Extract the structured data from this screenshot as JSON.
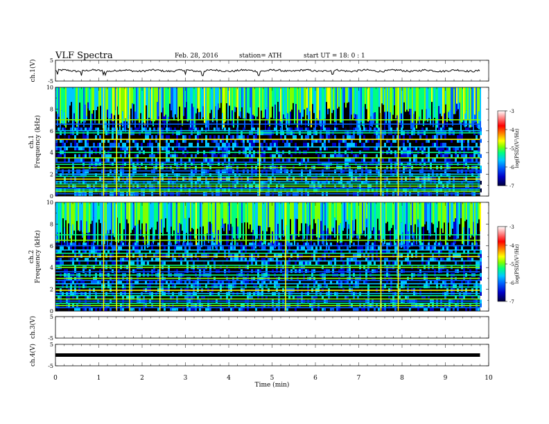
{
  "header": {
    "title": "VLF  Spectra",
    "date": "Feb. 28, 2016",
    "station": "station= ATH",
    "start": "start  UT  =    18: 0  : 1"
  },
  "colors": {
    "background": "#000000",
    "trace": "#000000",
    "colormap": [
      "#00003c",
      "#0000c8",
      "#0060ff",
      "#00c8ff",
      "#00ff80",
      "#80ff00",
      "#ffff00",
      "#ff8000",
      "#ff0000",
      "#ff8080",
      "#ffffff"
    ]
  },
  "chart_data": [
    {
      "type": "line",
      "id": "ch1-waveform",
      "ylabel": "ch.1(V)",
      "yticks": [
        "5",
        "-5"
      ],
      "ylim": [
        -5,
        5
      ],
      "xlim": [
        0,
        10
      ],
      "x_end": 9.8,
      "baseline": 0,
      "dips": [
        0.05,
        0.6,
        1.1,
        1.15,
        3.0,
        3.4,
        4.7,
        6.4
      ]
    },
    {
      "type": "heatmap",
      "id": "ch1-spectrogram",
      "ylabel": "Frequency  (kHz)",
      "ylabel_channel": "ch.1",
      "yticks": [
        "0",
        "2",
        "4",
        "6",
        "8",
        "10"
      ],
      "ylim": [
        0,
        10
      ],
      "xlim": [
        0,
        10
      ],
      "x_end": 9.8,
      "colorbar": {
        "label": "log(PSD)(V²/Hz)",
        "ticks": [
          "-3",
          "-4",
          "-5",
          "-6",
          "-7"
        ],
        "range": [
          -7,
          -3
        ]
      },
      "noise_floor": -6.9,
      "upper_band_level": -5.6,
      "upper_band_kHz": [
        6.2,
        10
      ],
      "horizontal_lines_kHz": [
        0.2,
        0.4,
        0.55,
        0.7,
        0.9,
        1.1,
        1.3,
        1.55,
        1.8,
        2.0,
        2.3,
        2.6,
        2.9,
        3.1,
        3.5,
        4.0,
        4.5,
        5.2,
        5.8,
        6.0,
        6.6,
        7.0
      ],
      "bright_spikes_min": [
        1.1,
        1.4,
        1.7,
        2.4,
        4.7,
        7.5,
        7.9
      ]
    },
    {
      "type": "heatmap",
      "id": "ch2-spectrogram",
      "ylabel": "Frequency  (kHz)",
      "ylabel_channel": "ch.2",
      "yticks": [
        "0",
        "2",
        "4",
        "6",
        "8",
        "10"
      ],
      "ylim": [
        0,
        10
      ],
      "xlim": [
        0,
        10
      ],
      "x_end": 9.8,
      "colorbar": {
        "label": "log(PSD)(V²/Hz)",
        "ticks": [
          "-3",
          "-4",
          "-5",
          "-6",
          "-7"
        ],
        "range": [
          -7,
          -3
        ]
      },
      "noise_floor": -6.9,
      "upper_band_level": -5.7,
      "upper_band_kHz": [
        6.0,
        10
      ],
      "horizontal_lines_kHz": [
        0.3,
        0.5,
        0.7,
        0.9,
        1.1,
        1.4,
        1.6,
        1.9,
        2.2,
        2.5,
        2.8,
        3.0,
        3.3,
        3.6,
        4.0,
        4.2,
        4.6,
        5.0,
        5.3,
        5.6,
        6.0,
        6.5,
        7.0
      ],
      "bright_spikes_min": [
        1.1,
        1.4,
        1.7,
        2.4,
        5.3,
        7.5,
        7.9
      ]
    },
    {
      "type": "line",
      "id": "ch3-waveform",
      "ylabel": "ch.3(V)",
      "yticks": [
        "5",
        "-5"
      ],
      "ylim": [
        -5,
        5
      ],
      "xlim": [
        0,
        10
      ],
      "x_end": 9.8,
      "baseline": 5
    },
    {
      "type": "line",
      "id": "ch4-waveform",
      "ylabel": "ch.4(V)",
      "yticks": [
        "5",
        "-5"
      ],
      "ylim": [
        -5,
        5
      ],
      "xlim": [
        0,
        10
      ],
      "x_end": 9.8,
      "baseline": 0
    }
  ],
  "xaxis": {
    "label": "Time  (min)",
    "ticks": [
      "0",
      "1",
      "2",
      "3",
      "4",
      "5",
      "6",
      "7",
      "8",
      "9",
      "10"
    ]
  }
}
